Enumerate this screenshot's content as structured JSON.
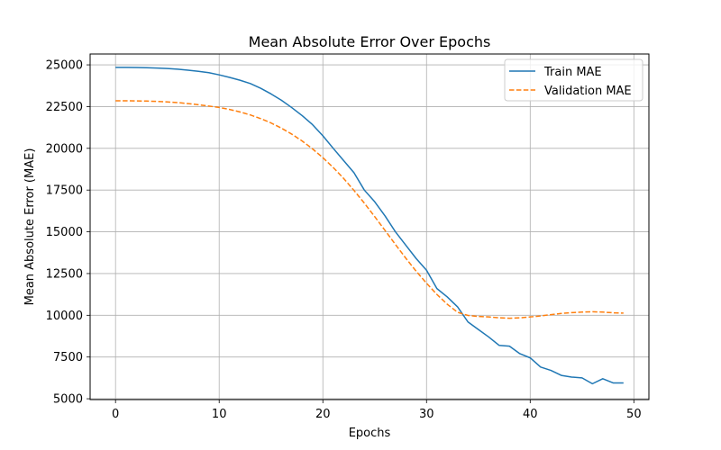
{
  "chart_data": {
    "type": "line",
    "title": "Mean Absolute Error Over Epochs",
    "xlabel": "Epochs",
    "ylabel": "Mean Absolute Error (MAE)",
    "xlim": [
      -2.45,
      51.45
    ],
    "ylim": [
      4950,
      25650
    ],
    "xticks": [
      0,
      10,
      20,
      30,
      40,
      50
    ],
    "yticks": [
      5000,
      7500,
      10000,
      12500,
      15000,
      17500,
      20000,
      22500,
      25000
    ],
    "grid": true,
    "legend_position": "top-right",
    "x": [
      0,
      1,
      2,
      3,
      4,
      5,
      6,
      7,
      8,
      9,
      10,
      11,
      12,
      13,
      14,
      15,
      16,
      17,
      18,
      19,
      20,
      21,
      22,
      23,
      24,
      25,
      26,
      27,
      28,
      29,
      30,
      31,
      32,
      33,
      34,
      35,
      36,
      37,
      38,
      39,
      40,
      41,
      42,
      43,
      44,
      45,
      46,
      47,
      48,
      49
    ],
    "series": [
      {
        "name": "Train MAE",
        "color": "#1f77b4",
        "dash": "solid",
        "values": [
          24850,
          24850,
          24840,
          24830,
          24810,
          24780,
          24740,
          24680,
          24610,
          24530,
          24400,
          24250,
          24080,
          23880,
          23600,
          23260,
          22880,
          22440,
          21960,
          21420,
          20750,
          20000,
          19270,
          18540,
          17500,
          16800,
          15950,
          15000,
          14200,
          13400,
          12700,
          11600,
          11100,
          10500,
          9600,
          9150,
          8700,
          8200,
          8150,
          7700,
          7450,
          6900,
          6700,
          6400,
          6300,
          6250,
          5900,
          6200,
          5950,
          5950
        ],
        "display_points": 49
      },
      {
        "name": "Validation MAE",
        "color": "#ff7f0e",
        "dash": "dashed",
        "values": [
          22850,
          22850,
          22840,
          22830,
          22810,
          22780,
          22740,
          22680,
          22610,
          22530,
          22450,
          22330,
          22180,
          22000,
          21780,
          21520,
          21210,
          20850,
          20440,
          19970,
          19440,
          18850,
          18200,
          17480,
          16720,
          15910,
          15080,
          14240,
          13420,
          12640,
          11920,
          11250,
          10660,
          10180,
          9990,
          9930,
          9900,
          9850,
          9820,
          9850,
          9900,
          9960,
          10040,
          10110,
          10160,
          10190,
          10210,
          10190,
          10150,
          10130
        ]
      }
    ]
  }
}
